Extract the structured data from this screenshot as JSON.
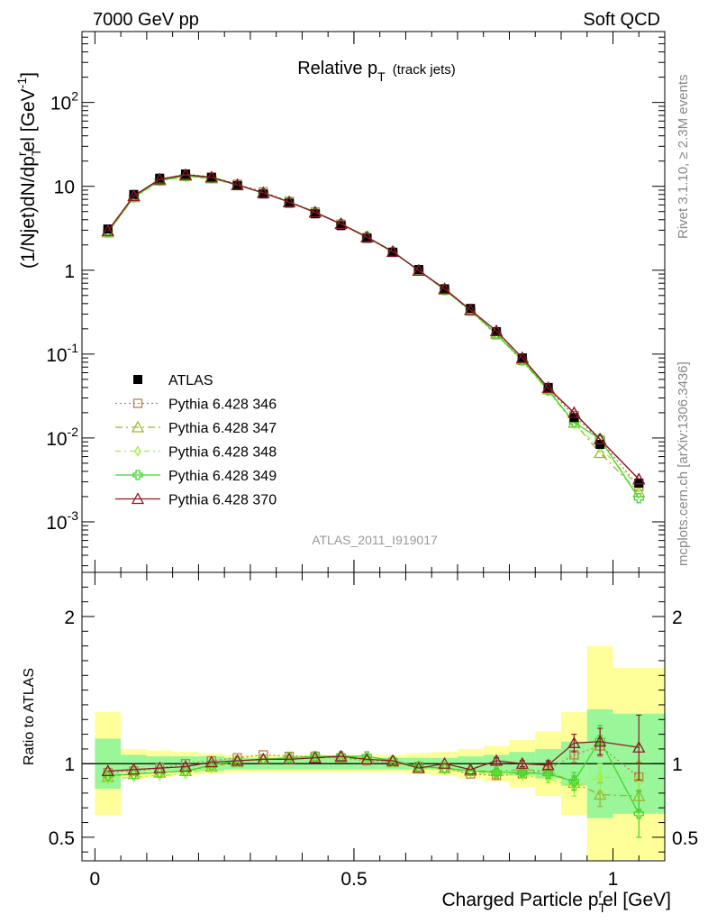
{
  "header": {
    "left": "7000 GeV pp",
    "right": "Soft QCD"
  },
  "side_labels": {
    "rivet": "Rivet 3.1.10, ≥ 2.3M events",
    "mcplots": "mcplots.cern.ch [arXiv:1306.3436]"
  },
  "main_panel": {
    "title_main": "Relative p",
    "title_sub": "T",
    "title_note": "(track jets)",
    "ylabel": "(1/Njet)dN/dp",
    "ylabel_sub": "T",
    "ylabel_sup": "r",
    "ylabel_tail": "el [GeV",
    "ylabel_exp": "-1",
    "ylabel_close": "]",
    "watermark": "ATLAS_2011_I919017",
    "y_scale": "log",
    "ylim": [
      0.00025,
      700
    ],
    "y_ticks": [
      {
        "base": "10",
        "exp": "-3",
        "value": 0.001
      },
      {
        "base": "10",
        "exp": "-2",
        "value": 0.01
      },
      {
        "base": "10",
        "exp": "-1",
        "value": 0.1
      },
      {
        "base": "1",
        "exp": "",
        "value": 1
      },
      {
        "base": "10",
        "exp": "",
        "value": 10
      },
      {
        "base": "10",
        "exp": "2",
        "value": 100
      }
    ]
  },
  "ratio_panel": {
    "ylabel": "Ratio to ATLAS",
    "ylim": [
      0.34,
      2.3
    ],
    "y_ticks_left": [
      "2",
      "1",
      "0.5"
    ],
    "y_ticks_right": [
      "2",
      "1",
      "0.5"
    ],
    "y_tick_values": [
      2,
      1,
      0.5
    ]
  },
  "x_axis": {
    "label": "Charged Particle p",
    "label_sub": "T",
    "label_sup": "r",
    "label_tail": "el [GeV]",
    "xlim": [
      -0.025,
      1.1
    ],
    "tick_labels": [
      "0",
      "0.5",
      "1"
    ],
    "tick_values": [
      0,
      0.5,
      1
    ]
  },
  "legend": [
    {
      "label": "ATLAS",
      "color": "#000000",
      "marker": "square-filled",
      "dash": ""
    },
    {
      "label": "Pythia 6.428 346",
      "color": "#b5834a",
      "marker": "square-open",
      "dash": "2,3"
    },
    {
      "label": "Pythia 6.428 347",
      "color": "#9fb32e",
      "marker": "triangle-open",
      "dash": "8,4,2,4"
    },
    {
      "label": "Pythia 6.428 348",
      "color": "#9ef03e",
      "marker": "diamond-open",
      "dash": "6,4,2,4"
    },
    {
      "label": "Pythia 6.428 349",
      "color": "#3fd62a",
      "marker": "plus",
      "dash": ""
    },
    {
      "label": "Pythia 6.428 370",
      "color": "#8c1a2a",
      "marker": "triangle-open",
      "dash": ""
    }
  ],
  "chart_data": {
    "type": "scatter",
    "x": [
      0.025,
      0.075,
      0.125,
      0.175,
      0.225,
      0.275,
      0.325,
      0.375,
      0.425,
      0.475,
      0.525,
      0.575,
      0.625,
      0.675,
      0.725,
      0.775,
      0.825,
      0.875,
      0.925,
      0.975,
      1.05
    ],
    "x_edges": [
      0,
      0.05,
      0.1,
      0.15,
      0.2,
      0.25,
      0.3,
      0.35,
      0.4,
      0.45,
      0.5,
      0.55,
      0.6,
      0.65,
      0.7,
      0.75,
      0.8,
      0.85,
      0.9,
      0.95,
      1.0,
      1.1
    ],
    "atlas": [
      3.1,
      8.0,
      12.5,
      14.0,
      12.7,
      10.2,
      8.1,
      6.3,
      4.7,
      3.4,
      2.4,
      1.63,
      1.02,
      0.6,
      0.35,
      0.185,
      0.09,
      0.04,
      0.0175,
      0.0084,
      0.0029
    ],
    "band_inner": [
      0.17,
      0.06,
      0.05,
      0.05,
      0.05,
      0.04,
      0.04,
      0.04,
      0.04,
      0.04,
      0.04,
      0.04,
      0.04,
      0.04,
      0.05,
      0.06,
      0.08,
      0.1,
      0.15,
      0.37,
      0.34
    ],
    "band_outer": [
      0.35,
      0.1,
      0.09,
      0.08,
      0.07,
      0.06,
      0.06,
      0.06,
      0.06,
      0.06,
      0.06,
      0.06,
      0.07,
      0.08,
      0.1,
      0.12,
      0.16,
      0.22,
      0.35,
      0.8,
      0.65
    ],
    "series": [
      {
        "name": "Pythia 6.428 346",
        "ratio": [
          0.94,
          0.95,
          0.97,
          1.0,
          1.02,
          1.04,
          1.06,
          1.05,
          1.05,
          1.04,
          1.02,
          1.01,
          0.98,
          0.97,
          0.93,
          0.92,
          0.93,
          0.96,
          1.06,
          1.12,
          0.91
        ],
        "err": [
          0.01,
          0.01,
          0.01,
          0.01,
          0.01,
          0.01,
          0.01,
          0.01,
          0.01,
          0.01,
          0.01,
          0.01,
          0.01,
          0.01,
          0.01,
          0.02,
          0.02,
          0.03,
          0.05,
          0.07,
          0.1
        ]
      },
      {
        "name": "Pythia 6.428 347",
        "ratio": [
          0.91,
          0.93,
          0.94,
          0.95,
          0.98,
          1.01,
          1.03,
          1.03,
          1.04,
          1.04,
          1.03,
          1.01,
          0.98,
          0.97,
          0.95,
          0.95,
          0.96,
          0.95,
          0.87,
          0.79,
          0.78
        ],
        "err": [
          0.01,
          0.01,
          0.01,
          0.01,
          0.01,
          0.01,
          0.01,
          0.01,
          0.01,
          0.01,
          0.01,
          0.01,
          0.01,
          0.01,
          0.01,
          0.02,
          0.02,
          0.03,
          0.05,
          0.08,
          0.1
        ]
      },
      {
        "name": "Pythia 6.428 348",
        "ratio": [
          0.89,
          0.91,
          0.92,
          0.93,
          0.97,
          1.01,
          1.03,
          1.04,
          1.05,
          1.05,
          1.04,
          1.01,
          0.97,
          0.96,
          0.94,
          0.93,
          0.92,
          0.9,
          0.84,
          0.91,
          0.9
        ],
        "err": [
          0.01,
          0.01,
          0.01,
          0.01,
          0.01,
          0.01,
          0.01,
          0.01,
          0.01,
          0.01,
          0.01,
          0.01,
          0.01,
          0.01,
          0.01,
          0.02,
          0.02,
          0.03,
          0.06,
          0.09,
          0.12
        ]
      },
      {
        "name": "Pythia 6.428 349",
        "ratio": [
          0.92,
          0.93,
          0.94,
          0.95,
          0.99,
          1.02,
          1.03,
          1.04,
          1.05,
          1.05,
          1.05,
          1.02,
          0.98,
          0.97,
          0.95,
          0.94,
          0.94,
          0.93,
          0.88,
          1.16,
          0.66
        ],
        "err": [
          0.01,
          0.01,
          0.01,
          0.01,
          0.01,
          0.01,
          0.01,
          0.01,
          0.01,
          0.01,
          0.01,
          0.01,
          0.01,
          0.01,
          0.01,
          0.02,
          0.02,
          0.03,
          0.06,
          0.1,
          0.16
        ]
      },
      {
        "name": "Pythia 6.428 370",
        "ratio": [
          0.95,
          0.96,
          0.97,
          0.98,
          1.01,
          1.02,
          1.03,
          1.03,
          1.04,
          1.05,
          1.03,
          1.02,
          0.97,
          1.0,
          0.96,
          1.02,
          1.0,
          0.99,
          1.14,
          1.15,
          1.11
        ],
        "err": [
          0.01,
          0.01,
          0.01,
          0.01,
          0.01,
          0.01,
          0.01,
          0.01,
          0.01,
          0.01,
          0.01,
          0.01,
          0.01,
          0.01,
          0.01,
          0.02,
          0.02,
          0.03,
          0.06,
          0.09,
          0.22
        ]
      }
    ]
  }
}
